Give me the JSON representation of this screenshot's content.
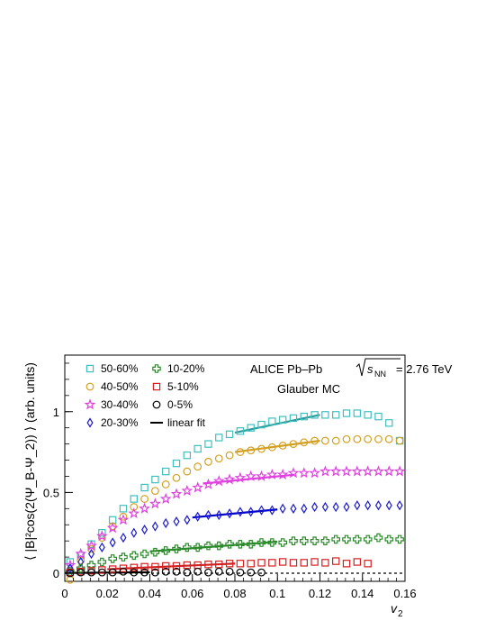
{
  "chart_data": {
    "type": "scatter",
    "xlabel": "v",
    "xlabel_sub": "2",
    "ylabel": "⟨ |B|²cos(2(Ψ_B-Ψ_2)) ⟩ (arb. units)",
    "xlim": [
      0,
      0.16
    ],
    "ylim": [
      -0.05,
      1.35
    ],
    "x_ticks": [
      0,
      0.02,
      0.04,
      0.06,
      0.08,
      0.1,
      0.12,
      0.14,
      0.16
    ],
    "x_tick_labels": [
      "0",
      "0.02",
      "0.04",
      "0.06",
      "0.08",
      "0.1",
      "0.12",
      "0.14",
      "0.16"
    ],
    "y_ticks": [
      0,
      0.5,
      1
    ],
    "y_tick_labels": [
      "0",
      "0.5",
      "1"
    ],
    "annotation": {
      "line1_prefix": "ALICE Pb–Pb",
      "line1_s": "s",
      "line1_sub": "NN",
      "line1_suffix": "= 2.76 TeV",
      "line2": "Glauber MC"
    },
    "legend_placement": "top-left",
    "series": [
      {
        "name": "50-60%",
        "marker": "open-square",
        "color": "#3fbfbf",
        "x": [
          0.0025,
          0.0075,
          0.0125,
          0.0175,
          0.0225,
          0.0275,
          0.0325,
          0.0375,
          0.0425,
          0.0475,
          0.0525,
          0.0575,
          0.0625,
          0.0675,
          0.0725,
          0.0775,
          0.0825,
          0.0875,
          0.0925,
          0.0975,
          0.1025,
          0.1075,
          0.1125,
          0.1175,
          0.1225,
          0.1275,
          0.1325,
          0.1375,
          0.1425,
          0.1475,
          0.1525,
          0.1575
        ],
        "y": [
          0.07,
          0.11,
          0.18,
          0.25,
          0.33,
          0.4,
          0.46,
          0.53,
          0.58,
          0.63,
          0.68,
          0.73,
          0.77,
          0.8,
          0.84,
          0.86,
          0.88,
          0.9,
          0.92,
          0.94,
          0.95,
          0.96,
          0.97,
          0.98,
          0.98,
          0.98,
          0.99,
          0.99,
          0.98,
          0.97,
          0.93,
          0.82
        ],
        "fit": {
          "x0": 0.08,
          "y0": 0.87,
          "x1": 0.12,
          "y1": 0.98
        }
      },
      {
        "name": "40-50%",
        "marker": "open-circle",
        "color": "#d4a020",
        "x": [
          0.0025,
          0.0075,
          0.0125,
          0.0175,
          0.0225,
          0.0275,
          0.0325,
          0.0375,
          0.0425,
          0.0475,
          0.0525,
          0.0575,
          0.0625,
          0.0675,
          0.0725,
          0.0775,
          0.0825,
          0.0875,
          0.0925,
          0.0975,
          0.1025,
          0.1075,
          0.1125,
          0.1175,
          0.1225,
          0.1275,
          0.1325,
          0.1375,
          0.1425,
          0.1475,
          0.1525,
          0.1575
        ],
        "y": [
          -0.04,
          0.08,
          0.15,
          0.22,
          0.29,
          0.35,
          0.41,
          0.46,
          0.51,
          0.55,
          0.59,
          0.63,
          0.66,
          0.69,
          0.71,
          0.73,
          0.75,
          0.76,
          0.77,
          0.78,
          0.79,
          0.8,
          0.81,
          0.82,
          0.82,
          0.82,
          0.83,
          0.83,
          0.83,
          0.83,
          0.83,
          0.82
        ],
        "fit": {
          "x0": 0.08,
          "y0": 0.75,
          "x1": 0.12,
          "y1": 0.82
        }
      },
      {
        "name": "30-40%",
        "marker": "open-star",
        "color": "#e040e0",
        "x": [
          0.0025,
          0.0075,
          0.0125,
          0.0175,
          0.0225,
          0.0275,
          0.0325,
          0.0375,
          0.0425,
          0.0475,
          0.0525,
          0.0575,
          0.0625,
          0.0675,
          0.0725,
          0.0775,
          0.0825,
          0.0875,
          0.0925,
          0.0975,
          0.1025,
          0.1075,
          0.1125,
          0.1175,
          0.1225,
          0.1275,
          0.1325,
          0.1375,
          0.1425,
          0.1475,
          0.1525,
          0.1575
        ],
        "y": [
          0.05,
          0.12,
          0.17,
          0.23,
          0.28,
          0.33,
          0.37,
          0.4,
          0.43,
          0.46,
          0.49,
          0.51,
          0.53,
          0.55,
          0.57,
          0.58,
          0.59,
          0.6,
          0.6,
          0.61,
          0.61,
          0.62,
          0.62,
          0.62,
          0.63,
          0.63,
          0.63,
          0.63,
          0.63,
          0.63,
          0.63,
          0.63
        ],
        "fit": {
          "x0": 0.065,
          "y0": 0.555,
          "x1": 0.108,
          "y1": 0.61
        }
      },
      {
        "name": "20-30%",
        "marker": "open-diamond",
        "color": "#1a1acc",
        "x": [
          0.0025,
          0.0075,
          0.0125,
          0.0175,
          0.0225,
          0.0275,
          0.0325,
          0.0375,
          0.0425,
          0.0475,
          0.0525,
          0.0575,
          0.0625,
          0.0675,
          0.0725,
          0.0775,
          0.0825,
          0.0875,
          0.0925,
          0.0975,
          0.1025,
          0.1075,
          0.1125,
          0.1175,
          0.1225,
          0.1275,
          0.1325,
          0.1375,
          0.1425,
          0.1475,
          0.1525,
          0.1575
        ],
        "y": [
          0.03,
          0.07,
          0.12,
          0.16,
          0.19,
          0.22,
          0.25,
          0.27,
          0.29,
          0.31,
          0.32,
          0.33,
          0.35,
          0.36,
          0.36,
          0.37,
          0.38,
          0.38,
          0.39,
          0.39,
          0.4,
          0.4,
          0.4,
          0.41,
          0.41,
          0.41,
          0.41,
          0.42,
          0.42,
          0.42,
          0.42,
          0.42
        ],
        "fit": {
          "x0": 0.06,
          "y0": 0.345,
          "x1": 0.1,
          "y1": 0.395
        }
      },
      {
        "name": "10-20%",
        "marker": "open-cross",
        "color": "#2a8a2a",
        "x": [
          0.0025,
          0.0075,
          0.0125,
          0.0175,
          0.0225,
          0.0275,
          0.0325,
          0.0375,
          0.0425,
          0.0475,
          0.0525,
          0.0575,
          0.0625,
          0.0675,
          0.0725,
          0.0775,
          0.0825,
          0.0875,
          0.0925,
          0.0975,
          0.1025,
          0.1075,
          0.1125,
          0.1175,
          0.1225,
          0.1275,
          0.1325,
          0.1375,
          0.1425,
          0.1475,
          0.1525,
          0.1575
        ],
        "y": [
          0.01,
          0.03,
          0.05,
          0.07,
          0.09,
          0.1,
          0.11,
          0.12,
          0.13,
          0.14,
          0.15,
          0.16,
          0.16,
          0.17,
          0.17,
          0.18,
          0.18,
          0.18,
          0.19,
          0.19,
          0.19,
          0.2,
          0.2,
          0.2,
          0.2,
          0.21,
          0.21,
          0.21,
          0.21,
          0.22,
          0.21,
          0.21
        ],
        "fit": {
          "x0": 0.04,
          "y0": 0.135,
          "x1": 0.1,
          "y1": 0.195
        }
      },
      {
        "name": "5-10%",
        "marker": "open-square",
        "color": "#d42020",
        "x": [
          0.0025,
          0.0075,
          0.0125,
          0.0175,
          0.0225,
          0.0275,
          0.0325,
          0.0375,
          0.0425,
          0.0475,
          0.0525,
          0.0575,
          0.0625,
          0.0675,
          0.0725,
          0.0775,
          0.0825,
          0.0875,
          0.0925,
          0.0975,
          0.1025,
          0.1075,
          0.1125,
          0.1175,
          0.1225,
          0.1275,
          0.1325,
          0.1375,
          0.1425
        ],
        "y": [
          0.005,
          0.01,
          0.015,
          0.02,
          0.025,
          0.03,
          0.035,
          0.04,
          0.04,
          0.045,
          0.045,
          0.05,
          0.05,
          0.055,
          0.055,
          0.06,
          0.06,
          0.06,
          0.065,
          0.065,
          0.07,
          0.065,
          0.065,
          0.07,
          0.065,
          0.075,
          0.06,
          0.07,
          0.06
        ],
        "fit": {
          "x0": 0.02,
          "y0": 0.025,
          "x1": 0.08,
          "y1": 0.06
        }
      },
      {
        "name": "0-5%",
        "marker": "open-circle",
        "color": "#000000",
        "x": [
          0.0025,
          0.0075,
          0.0125,
          0.0175,
          0.0225,
          0.0275,
          0.0325,
          0.0375,
          0.0425,
          0.0475,
          0.0525,
          0.0575,
          0.0625,
          0.0675,
          0.0725,
          0.0775,
          0.0825,
          0.0875,
          0.0925
        ],
        "y": [
          0.0,
          0.005,
          0.005,
          0.005,
          0.005,
          0.01,
          0.005,
          0.005,
          0.005,
          0.01,
          0.01,
          0.005,
          0.01,
          0.005,
          0.01,
          0.01,
          0.005,
          0.005,
          0.005
        ],
        "fit": {
          "x0": 0.0,
          "y0": 0.002,
          "x1": 0.04,
          "y1": 0.006
        }
      }
    ],
    "legend_linear_fit_label": "linear fit"
  }
}
